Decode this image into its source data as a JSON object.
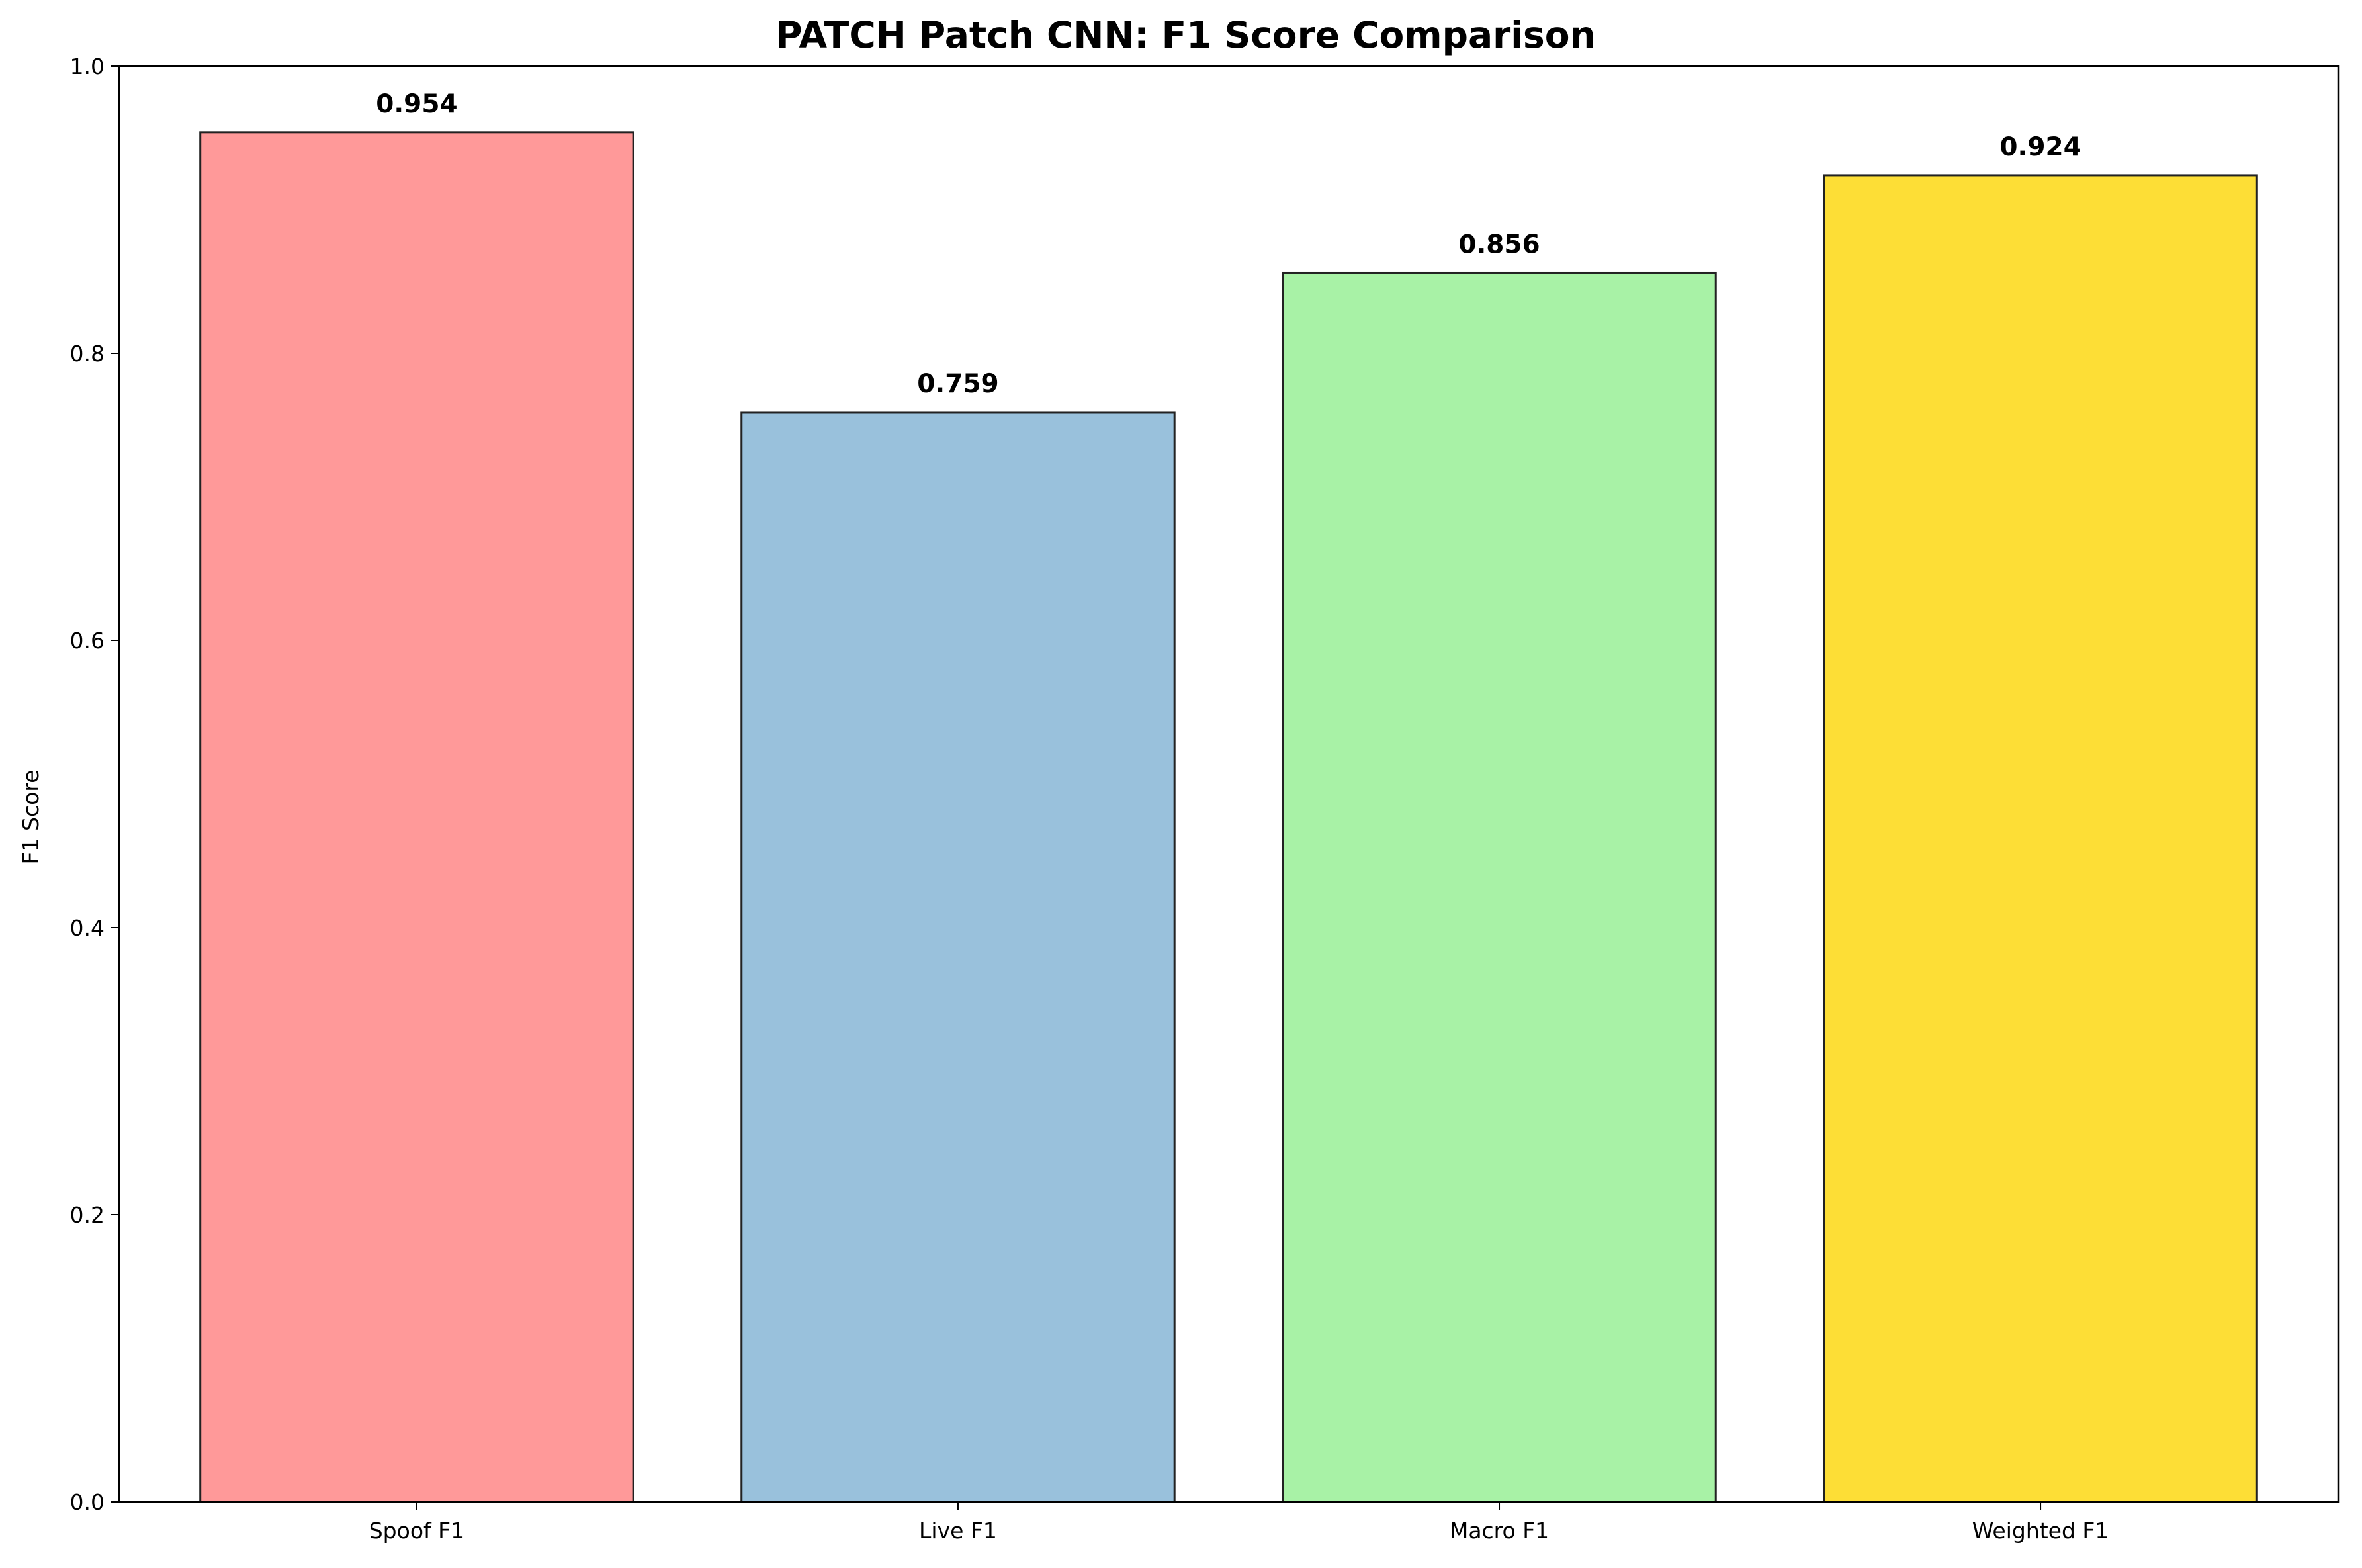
{
  "chart_data": {
    "type": "bar",
    "title": "PATCH Patch CNN: F1 Score Comparison",
    "xlabel": "",
    "ylabel": "F1 Score",
    "ylim": [
      0,
      1.0
    ],
    "yticks": [
      0.0,
      0.2,
      0.4,
      0.6,
      0.8,
      1.0
    ],
    "ytick_labels": [
      "0.0",
      "0.2",
      "0.4",
      "0.6",
      "0.8",
      "1.0"
    ],
    "categories": [
      "Spoof F1",
      "Live F1",
      "Macro F1",
      "Weighted F1"
    ],
    "values": [
      0.954,
      0.759,
      0.856,
      0.924
    ],
    "value_labels": [
      "0.954",
      "0.759",
      "0.856",
      "0.924"
    ],
    "colors": [
      "#ff9999",
      "#99c1dc",
      "#a8f2a6",
      "#fdde36"
    ],
    "edge_color": "#222222",
    "grid": false,
    "legend": "none"
  }
}
